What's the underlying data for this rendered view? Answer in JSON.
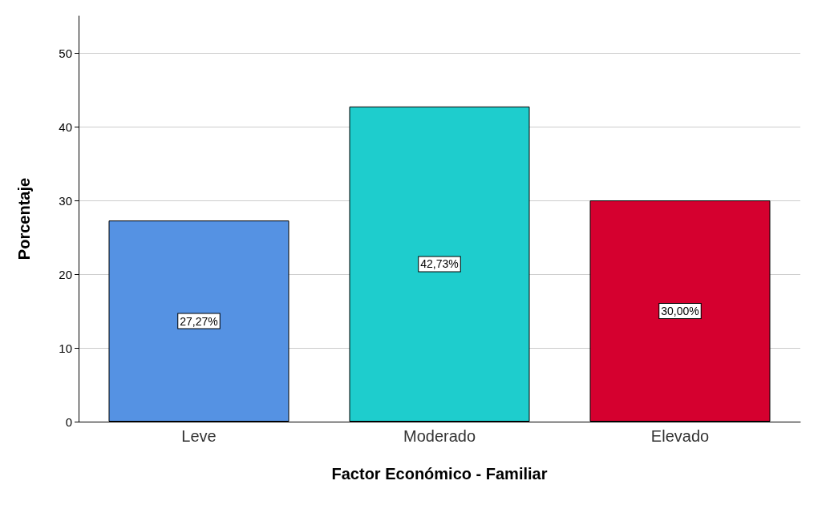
{
  "chart_data": {
    "type": "bar",
    "xlabel": "Factor Económico - Familiar",
    "ylabel": "Porcentaje",
    "categories": [
      "Leve",
      "Moderado",
      "Elevado"
    ],
    "values": [
      27.27,
      42.73,
      30.0
    ],
    "colors": [
      "#5592e3",
      "#1ecdcd",
      "#d5002f"
    ],
    "value_labels": [
      "27,27%",
      "42,73%",
      "30,00%"
    ],
    "ylim": [
      0,
      55
    ],
    "yticks": [
      0,
      10,
      20,
      30,
      40,
      50
    ],
    "grid": "y"
  }
}
